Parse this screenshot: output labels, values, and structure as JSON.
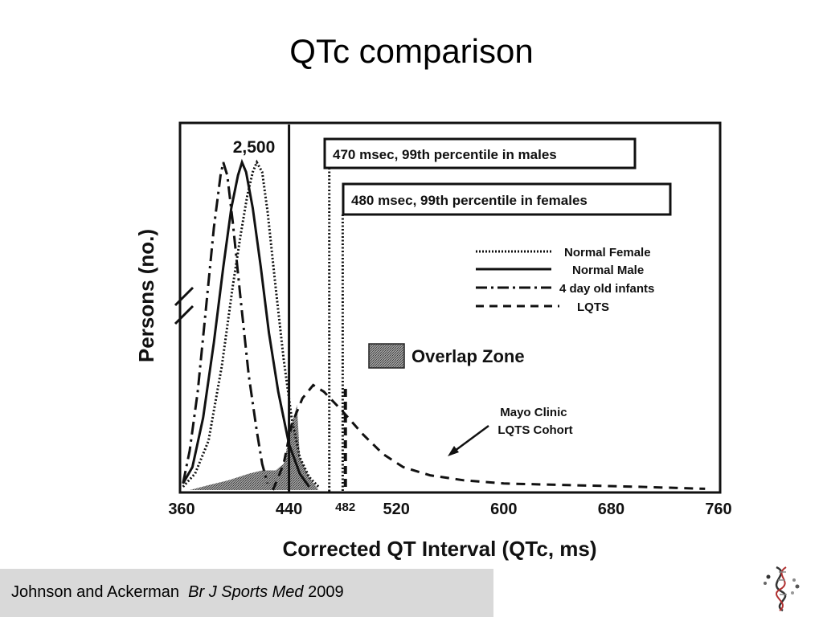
{
  "slide": {
    "title": "QTc comparison",
    "citation": {
      "authors": "Johnson and Ackerman",
      "journal": "Br J Sports Med",
      "year": "2009"
    },
    "logo": "dna-helix-logo"
  },
  "chart_data": {
    "type": "line",
    "title": "",
    "xlabel": "Corrected QT Interval (QTc, ms)",
    "ylabel": "Persons (no.)",
    "xlim": [
      360,
      760
    ],
    "x_ticks": [
      "360",
      "440",
      "482",
      "520",
      "600",
      "680",
      "760"
    ],
    "peak_label": "2,500",
    "series": [
      {
        "name": "Normal Female",
        "style": "dotted",
        "points": [
          [
            361,
            0.01
          ],
          [
            370,
            0.05
          ],
          [
            380,
            0.15
          ],
          [
            390,
            0.38
          ],
          [
            398,
            0.62
          ],
          [
            404,
            0.78
          ],
          [
            409,
            0.9
          ],
          [
            413,
            0.97
          ],
          [
            416,
            1.0
          ],
          [
            420,
            0.97
          ],
          [
            424,
            0.85
          ],
          [
            430,
            0.62
          ],
          [
            436,
            0.4
          ],
          [
            442,
            0.22
          ],
          [
            448,
            0.1
          ],
          [
            455,
            0.04
          ],
          [
            462,
            0.01
          ]
        ]
      },
      {
        "name": "Normal Male",
        "style": "solid",
        "points": [
          [
            361,
            0.02
          ],
          [
            368,
            0.07
          ],
          [
            376,
            0.22
          ],
          [
            384,
            0.45
          ],
          [
            391,
            0.68
          ],
          [
            397,
            0.86
          ],
          [
            402,
            0.96
          ],
          [
            405,
            1.0
          ],
          [
            408,
            0.97
          ],
          [
            413,
            0.86
          ],
          [
            419,
            0.68
          ],
          [
            425,
            0.48
          ],
          [
            432,
            0.3
          ],
          [
            440,
            0.14
          ],
          [
            448,
            0.05
          ],
          [
            455,
            0.01
          ]
        ]
      },
      {
        "name": "4 day old infants",
        "style": "dash-dot",
        "points": [
          [
            361,
            0.02
          ],
          [
            366,
            0.12
          ],
          [
            372,
            0.3
          ],
          [
            378,
            0.55
          ],
          [
            384,
            0.8
          ],
          [
            389,
            0.96
          ],
          [
            391,
            1.0
          ],
          [
            394,
            0.96
          ],
          [
            398,
            0.82
          ],
          [
            404,
            0.58
          ],
          [
            410,
            0.35
          ],
          [
            416,
            0.18
          ],
          [
            420,
            0.08
          ],
          [
            424,
            0.02
          ]
        ]
      },
      {
        "name": "LQTS",
        "style": "dashed",
        "points": [
          [
            428,
            0.0
          ],
          [
            436,
            0.08
          ],
          [
            442,
            0.2
          ],
          [
            450,
            0.28
          ],
          [
            458,
            0.32
          ],
          [
            466,
            0.3
          ],
          [
            480,
            0.24
          ],
          [
            495,
            0.17
          ],
          [
            510,
            0.11
          ],
          [
            525,
            0.07
          ],
          [
            545,
            0.045
          ],
          [
            570,
            0.03
          ],
          [
            600,
            0.02
          ],
          [
            650,
            0.015
          ],
          [
            700,
            0.01
          ],
          [
            750,
            0.004
          ]
        ]
      }
    ],
    "reference_lines": [
      {
        "label": "470 msec, 99th percentile in males",
        "x": 470
      },
      {
        "label": "480 msec, 99th percentile in females",
        "x": 480
      }
    ],
    "markers": [
      {
        "x": 440,
        "style": "solid"
      },
      {
        "x": 482,
        "style": "dashed"
      }
    ],
    "overlap_zone": {
      "label": "Overlap Zone",
      "points": [
        [
          366,
          0.0
        ],
        [
          380,
          0.015
        ],
        [
          395,
          0.03
        ],
        [
          410,
          0.05
        ],
        [
          420,
          0.06
        ],
        [
          430,
          0.06
        ],
        [
          436,
          0.08
        ],
        [
          442,
          0.2
        ],
        [
          446,
          0.26
        ],
        [
          448,
          0.1
        ],
        [
          455,
          0.04
        ],
        [
          462,
          0.0
        ]
      ]
    },
    "annotation": "Mayo Clinic LQTS Cohort",
    "legend_position": "right",
    "grid": false,
    "y_axis_break": true
  }
}
